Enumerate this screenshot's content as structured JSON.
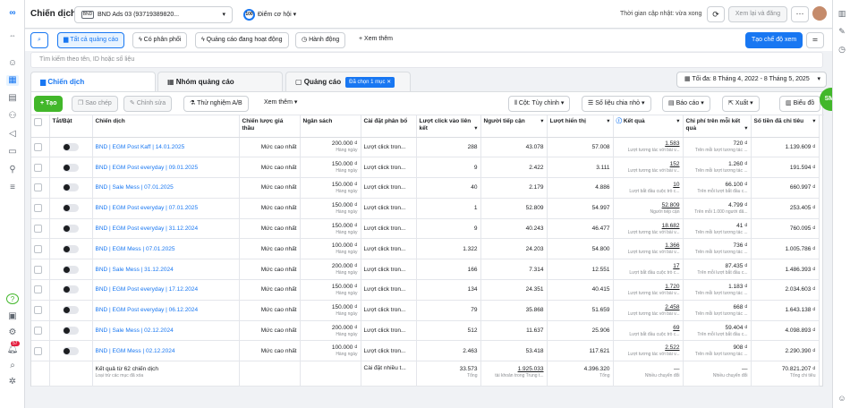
{
  "left_nav": {
    "icons": [
      "meta-logo-icon",
      "collapse-icon",
      "smiley-icon",
      "grid-icon",
      "pages-icon",
      "audience-icon",
      "megaphone-icon",
      "billing-icon",
      "business-icon",
      "menu-icon"
    ],
    "bottom": {
      "help": "?",
      "notif_count": "57"
    }
  },
  "top": {
    "title": "Chiến dịch",
    "account": "BND Ads 03 (93719389820...",
    "account_badge": "BND",
    "opportunity_score": "100",
    "opportunity_label": "Điểm cơ hội",
    "update_text": "Thời gian cập nhật: vừa xong",
    "review_label": "Xem lại và đăng",
    "more_label": "···"
  },
  "toolbar": {
    "all_ads": "Tất cả quảng cáo",
    "with_delivery": "Có phân phối",
    "active_ads": "Quảng cáo đang hoạt động",
    "actions": "Hành động",
    "see_more": "+ Xem thêm",
    "create_view": "Tạo chế độ xem"
  },
  "search": {
    "placeholder": "Tìm kiếm theo tên, ID hoặc số liệu"
  },
  "tabs": {
    "campaigns": "Chiến dịch",
    "adsets": "Nhóm quảng cáo",
    "ads": "Quảng cáo",
    "ads_pill": "Đã chọn 1 mục ✕",
    "date_range": "Tối đa: 8 Tháng 4, 2022 - 8 Tháng 5, 2025"
  },
  "actions": {
    "create": "+ Tạo",
    "duplicate": "Sao chép",
    "edit": "Chỉnh sửa",
    "ab_test": "Thử nghiệm A/B",
    "view_more": "Xem thêm",
    "columns": "Cột: Tùy chỉnh",
    "breakdown": "Số liệu chia nhỏ",
    "reports": "Báo cáo",
    "export": "Xuất",
    "charts": "Biểu đồ"
  },
  "columns": [
    "Tắt/Bật",
    "Chiến dịch",
    "Chiến lược giá thầu",
    "Ngân sách",
    "Cài đặt phân bổ",
    "Lượt click vào liên kết",
    "Người tiếp cận",
    "Lượt hiển thị",
    "Kết quả",
    "Chi phí trên mỗi kết quả",
    "Số tiền đã chi tiêu"
  ],
  "rows": [
    {
      "name": "BND | EGM Post Kaff | 14.01.2025",
      "bid": "Mức cao nhất",
      "budget": "200.000 ₫",
      "budget_sub": "Hàng ngày",
      "attr": "Lượt click tron...",
      "clicks": "288",
      "reach": "43.078",
      "impr": "57.008",
      "result": "1.583",
      "result_sub": "Lượt tương tác với bài v...",
      "cpr": "720 ₫",
      "cpr_sub": "Trên mỗi lượt tương tác ...",
      "spent": "1.139.609 ₫"
    },
    {
      "name": "BND | EGM Post everyday | 09.01.2025",
      "bid": "Mức cao nhất",
      "budget": "150.000 ₫",
      "budget_sub": "Hàng ngày",
      "attr": "Lượt click tron...",
      "clicks": "9",
      "reach": "2.422",
      "impr": "3.111",
      "result": "152",
      "result_sub": "Lượt tương tác với bài v...",
      "cpr": "1.260 ₫",
      "cpr_sub": "Trên mỗi lượt tương tác ...",
      "spent": "191.594 ₫"
    },
    {
      "name": "BND | Sale Mess | 07.01.2025",
      "bid": "Mức cao nhất",
      "budget": "150.000 ₫",
      "budget_sub": "Hàng ngày",
      "attr": "Lượt click tron...",
      "clicks": "40",
      "reach": "2.179",
      "impr": "4.886",
      "result": "10",
      "result_sub": "Lượt bắt đầu cuộc trò c...",
      "cpr": "66.100 ₫",
      "cpr_sub": "Trên mỗi lượt bắt đầu c...",
      "spent": "660.997 ₫"
    },
    {
      "name": "BND | EGM Post everyday | 07.01.2025",
      "bid": "Mức cao nhất",
      "budget": "150.000 ₫",
      "budget_sub": "Hàng ngày",
      "attr": "Lượt click tron...",
      "clicks": "1",
      "reach": "52.809",
      "impr": "54.997",
      "result": "52.809",
      "result_sub": "Người tiếp cận",
      "cpr": "4.799 ₫",
      "cpr_sub": "Trên mỗi 1.000 người đã...",
      "spent": "253.405 ₫"
    },
    {
      "name": "BND | EGM Post everyday | 31.12.2024",
      "bid": "Mức cao nhất",
      "budget": "150.000 ₫",
      "budget_sub": "Hàng ngày",
      "attr": "Lượt click tron...",
      "clicks": "9",
      "reach": "40.243",
      "impr": "46.477",
      "result": "18.682",
      "result_sub": "Lượt tương tác với bài v...",
      "cpr": "41 ₫",
      "cpr_sub": "Trên mỗi lượt tương tác ...",
      "spent": "760.095 ₫"
    },
    {
      "name": "BND | EGM Mess | 07.01.2025",
      "bid": "Mức cao nhất",
      "budget": "100.000 ₫",
      "budget_sub": "Hàng ngày",
      "attr": "Lượt click tron...",
      "clicks": "1.322",
      "reach": "24.203",
      "impr": "54.800",
      "result": "1.366",
      "result_sub": "Lượt tương tác với bài v...",
      "cpr": "736 ₫",
      "cpr_sub": "Trên mỗi lượt tương tác ...",
      "spent": "1.005.786 ₫"
    },
    {
      "name": "BND | Sale Mess | 31.12.2024",
      "bid": "Mức cao nhất",
      "budget": "200.000 ₫",
      "budget_sub": "Hàng ngày",
      "attr": "Lượt click tron...",
      "clicks": "166",
      "reach": "7.314",
      "impr": "12.551",
      "result": "17",
      "result_sub": "Lượt bắt đầu cuộc trò c...",
      "cpr": "87.435 ₫",
      "cpr_sub": "Trên mỗi lượt bắt đầu c...",
      "spent": "1.486.393 ₫"
    },
    {
      "name": "BND | EGM Post everyday | 17.12.2024",
      "bid": "Mức cao nhất",
      "budget": "150.000 ₫",
      "budget_sub": "Hàng ngày",
      "attr": "Lượt click tron...",
      "clicks": "134",
      "reach": "24.351",
      "impr": "40.415",
      "result": "1.720",
      "result_sub": "Lượt tương tác với bài v...",
      "cpr": "1.183 ₫",
      "cpr_sub": "Trên mỗi lượt tương tác ...",
      "spent": "2.034.603 ₫"
    },
    {
      "name": "BND | EGM Post everyday | 06.12.2024",
      "bid": "Mức cao nhất",
      "budget": "150.000 ₫",
      "budget_sub": "Hàng ngày",
      "attr": "Lượt click tron...",
      "clicks": "79",
      "reach": "35.868",
      "impr": "51.659",
      "result": "2.458",
      "result_sub": "Lượt tương tác với bài v...",
      "cpr": "668 ₫",
      "cpr_sub": "Trên mỗi lượt tương tác ...",
      "spent": "1.643.138 ₫"
    },
    {
      "name": "BND | Sale Mess | 02.12.2024",
      "bid": "Mức cao nhất",
      "budget": "200.000 ₫",
      "budget_sub": "Hàng ngày",
      "attr": "Lượt click tron...",
      "clicks": "512",
      "reach": "11.637",
      "impr": "25.906",
      "result": "69",
      "result_sub": "Lượt bắt đầu cuộc trò c...",
      "cpr": "59.404 ₫",
      "cpr_sub": "Trên mỗi lượt bắt đầu c...",
      "spent": "4.098.893 ₫"
    },
    {
      "name": "BND | EGM Mess | 02.12.2024",
      "bid": "Mức cao nhất",
      "budget": "100.000 ₫",
      "budget_sub": "Hàng ngày",
      "attr": "Lượt click tron...",
      "clicks": "2.463",
      "reach": "53.418",
      "impr": "117.621",
      "result": "2.522",
      "result_sub": "Lượt tương tác với bài v...",
      "cpr": "908 ₫",
      "cpr_sub": "Trên mỗi lượt tương tác ...",
      "spent": "2.290.390 ₫"
    }
  ],
  "total": {
    "label": "Kết quả từ 62 chiến dịch",
    "sub": "Loại trừ các mục đã xóa",
    "attr": "Cài đặt nhiều t...",
    "clicks": "33.573",
    "clicks_sub": "Tổng",
    "reach": "1.925.033",
    "reach_sub": "tài khoản trong Trung t...",
    "impr": "4.396.320",
    "impr_sub": "Tổng",
    "result": "—",
    "result_sub": "Nhiều chuyển đổi",
    "cpr": "—",
    "cpr_sub": "Nhiều chuyển đổi",
    "spent": "70.821.207 ₫",
    "spent_sub": "Tổng chi tiêu"
  },
  "fab": "SMit"
}
